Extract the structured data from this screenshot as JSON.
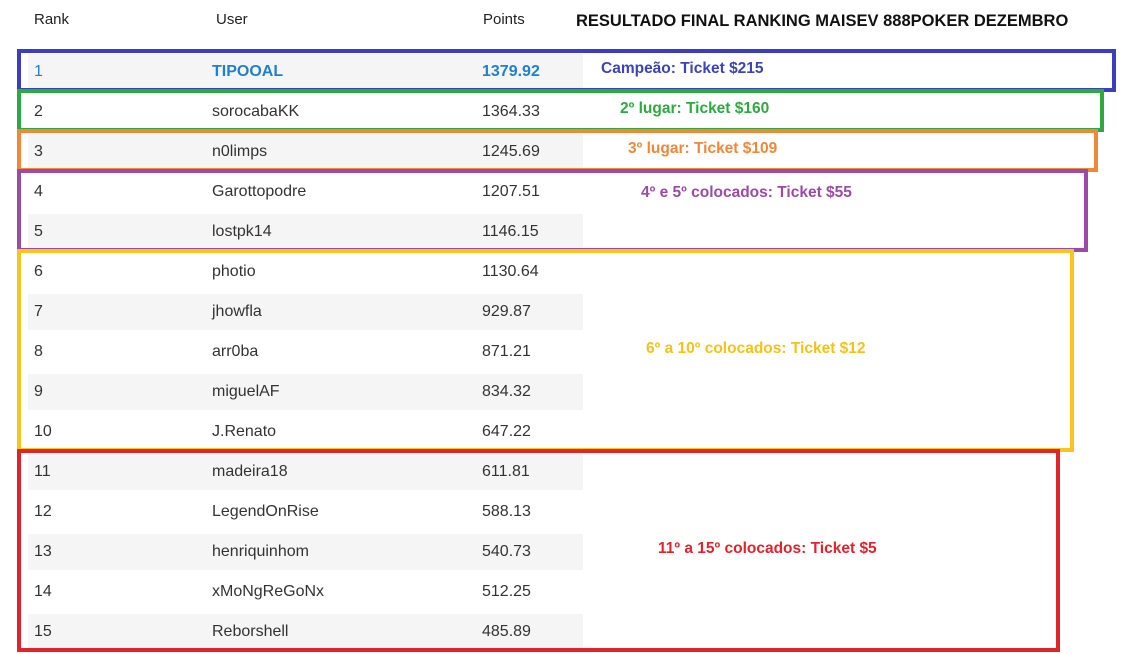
{
  "header": {
    "columns": [
      "Rank",
      "User",
      "Points"
    ],
    "title": "RESULTADO FINAL RANKING MAISEV 888POKER DEZEMBRO"
  },
  "groups": [
    {
      "label": "Campeão: Ticket $215",
      "color": "#3b3fbf",
      "label_color": "#3a44b8",
      "rows": [
        [
          "1",
          "TIPOOAL",
          "1379.92"
        ]
      ]
    },
    {
      "label": "2º lugar: Ticket $160",
      "color": "#2fa83f",
      "label_color": "#2fa83f",
      "rows": [
        [
          "2",
          "sorocabaKK",
          "1364.33"
        ]
      ]
    },
    {
      "label": "3º lugar: Ticket $109",
      "color": "#f0883a",
      "label_color": "#f0883a",
      "rows": [
        [
          "3",
          "n0limps",
          "1245.69"
        ]
      ]
    },
    {
      "label": "4º e 5º colocados: Ticket $55",
      "color": "#9b4aa6",
      "label_color": "#9b4aa6",
      "rows": [
        [
          "4",
          "Garottopodre",
          "1207.51"
        ],
        [
          "5",
          "lostpk14",
          "1146.15"
        ]
      ]
    },
    {
      "label": "6º a 10º colocados: Ticket $12",
      "color": "#f7c51e",
      "label_color": "#f5c21c",
      "rows": [
        [
          "6",
          "photio",
          "1130.64"
        ],
        [
          "7",
          "jhowfla",
          "929.87"
        ],
        [
          "8",
          "arr0ba",
          "871.21"
        ],
        [
          "9",
          "miguelAF",
          "834.32"
        ],
        [
          "10",
          "J.Renato",
          "647.22"
        ]
      ]
    },
    {
      "label": "11º a 15º colocados: Ticket $5",
      "color": "#e0242a",
      "label_color": "#e0242a",
      "rows": [
        [
          "11",
          "madeira18",
          "611.81"
        ],
        [
          "12",
          "LegendOnRise",
          "588.13"
        ],
        [
          "13",
          "henriquinhom",
          "540.73"
        ],
        [
          "14",
          "xMoNgReGoNx",
          "512.25"
        ],
        [
          "15",
          "Reborshell",
          "485.89"
        ]
      ]
    }
  ]
}
